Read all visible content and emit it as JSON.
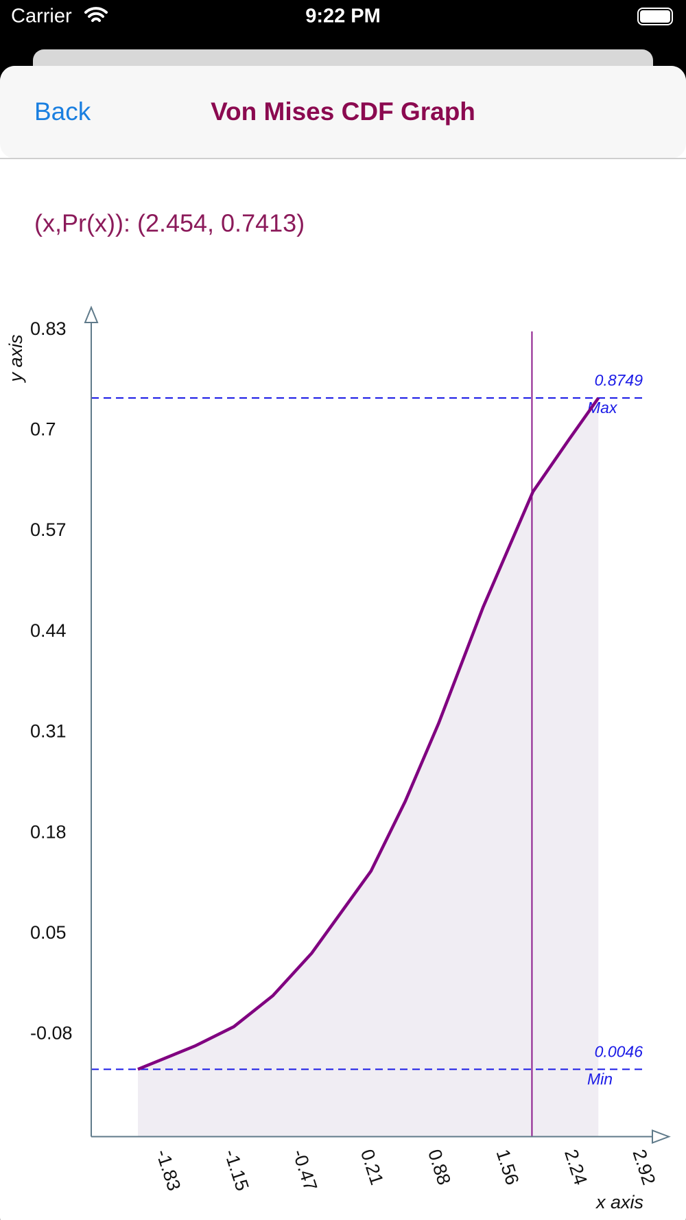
{
  "status_bar": {
    "carrier": "Carrier",
    "time": "9:22 PM"
  },
  "nav": {
    "back": "Back",
    "title": "Von Mises CDF Graph"
  },
  "readout": "(x,Pr(x)): (2.454, 0.7413)",
  "chart_data": {
    "type": "area",
    "x_label": "x axis",
    "y_label": "y axis",
    "x": [
      -2.11,
      -1.543,
      -1.155,
      -0.766,
      -0.378,
      0.212,
      0.553,
      0.887,
      1.33,
      1.826,
      2.183,
      2.478
    ],
    "series": [
      {
        "color": "#800080",
        "fill": "#f0edf3",
        "values": [
          -0.125,
          -0.095,
          -0.07,
          -0.03,
          0.025,
          0.131,
          0.221,
          0.322,
          0.472,
          0.621,
          0.688,
          0.742
        ]
      }
    ],
    "xlim": [
      -2.575,
      3.18
    ],
    "ylim": [
      -0.212,
      0.859
    ],
    "xticks": [
      -1.83,
      -1.15,
      -0.47,
      0.21,
      0.88,
      1.56,
      2.24,
      2.92
    ],
    "yticks": [
      0.83,
      0.7,
      0.57,
      0.44,
      0.31,
      0.18,
      0.05,
      -0.08
    ],
    "cursor_x": 1.816,
    "cursor_color": "#8b1a8b",
    "axis_color": "#5f7a8a",
    "ref_line_color": "#1a1ae6",
    "annotations": {
      "max_value": "0.8749",
      "max_tag": "Max",
      "min_value": "0.0046",
      "min_tag": "Min"
    }
  }
}
